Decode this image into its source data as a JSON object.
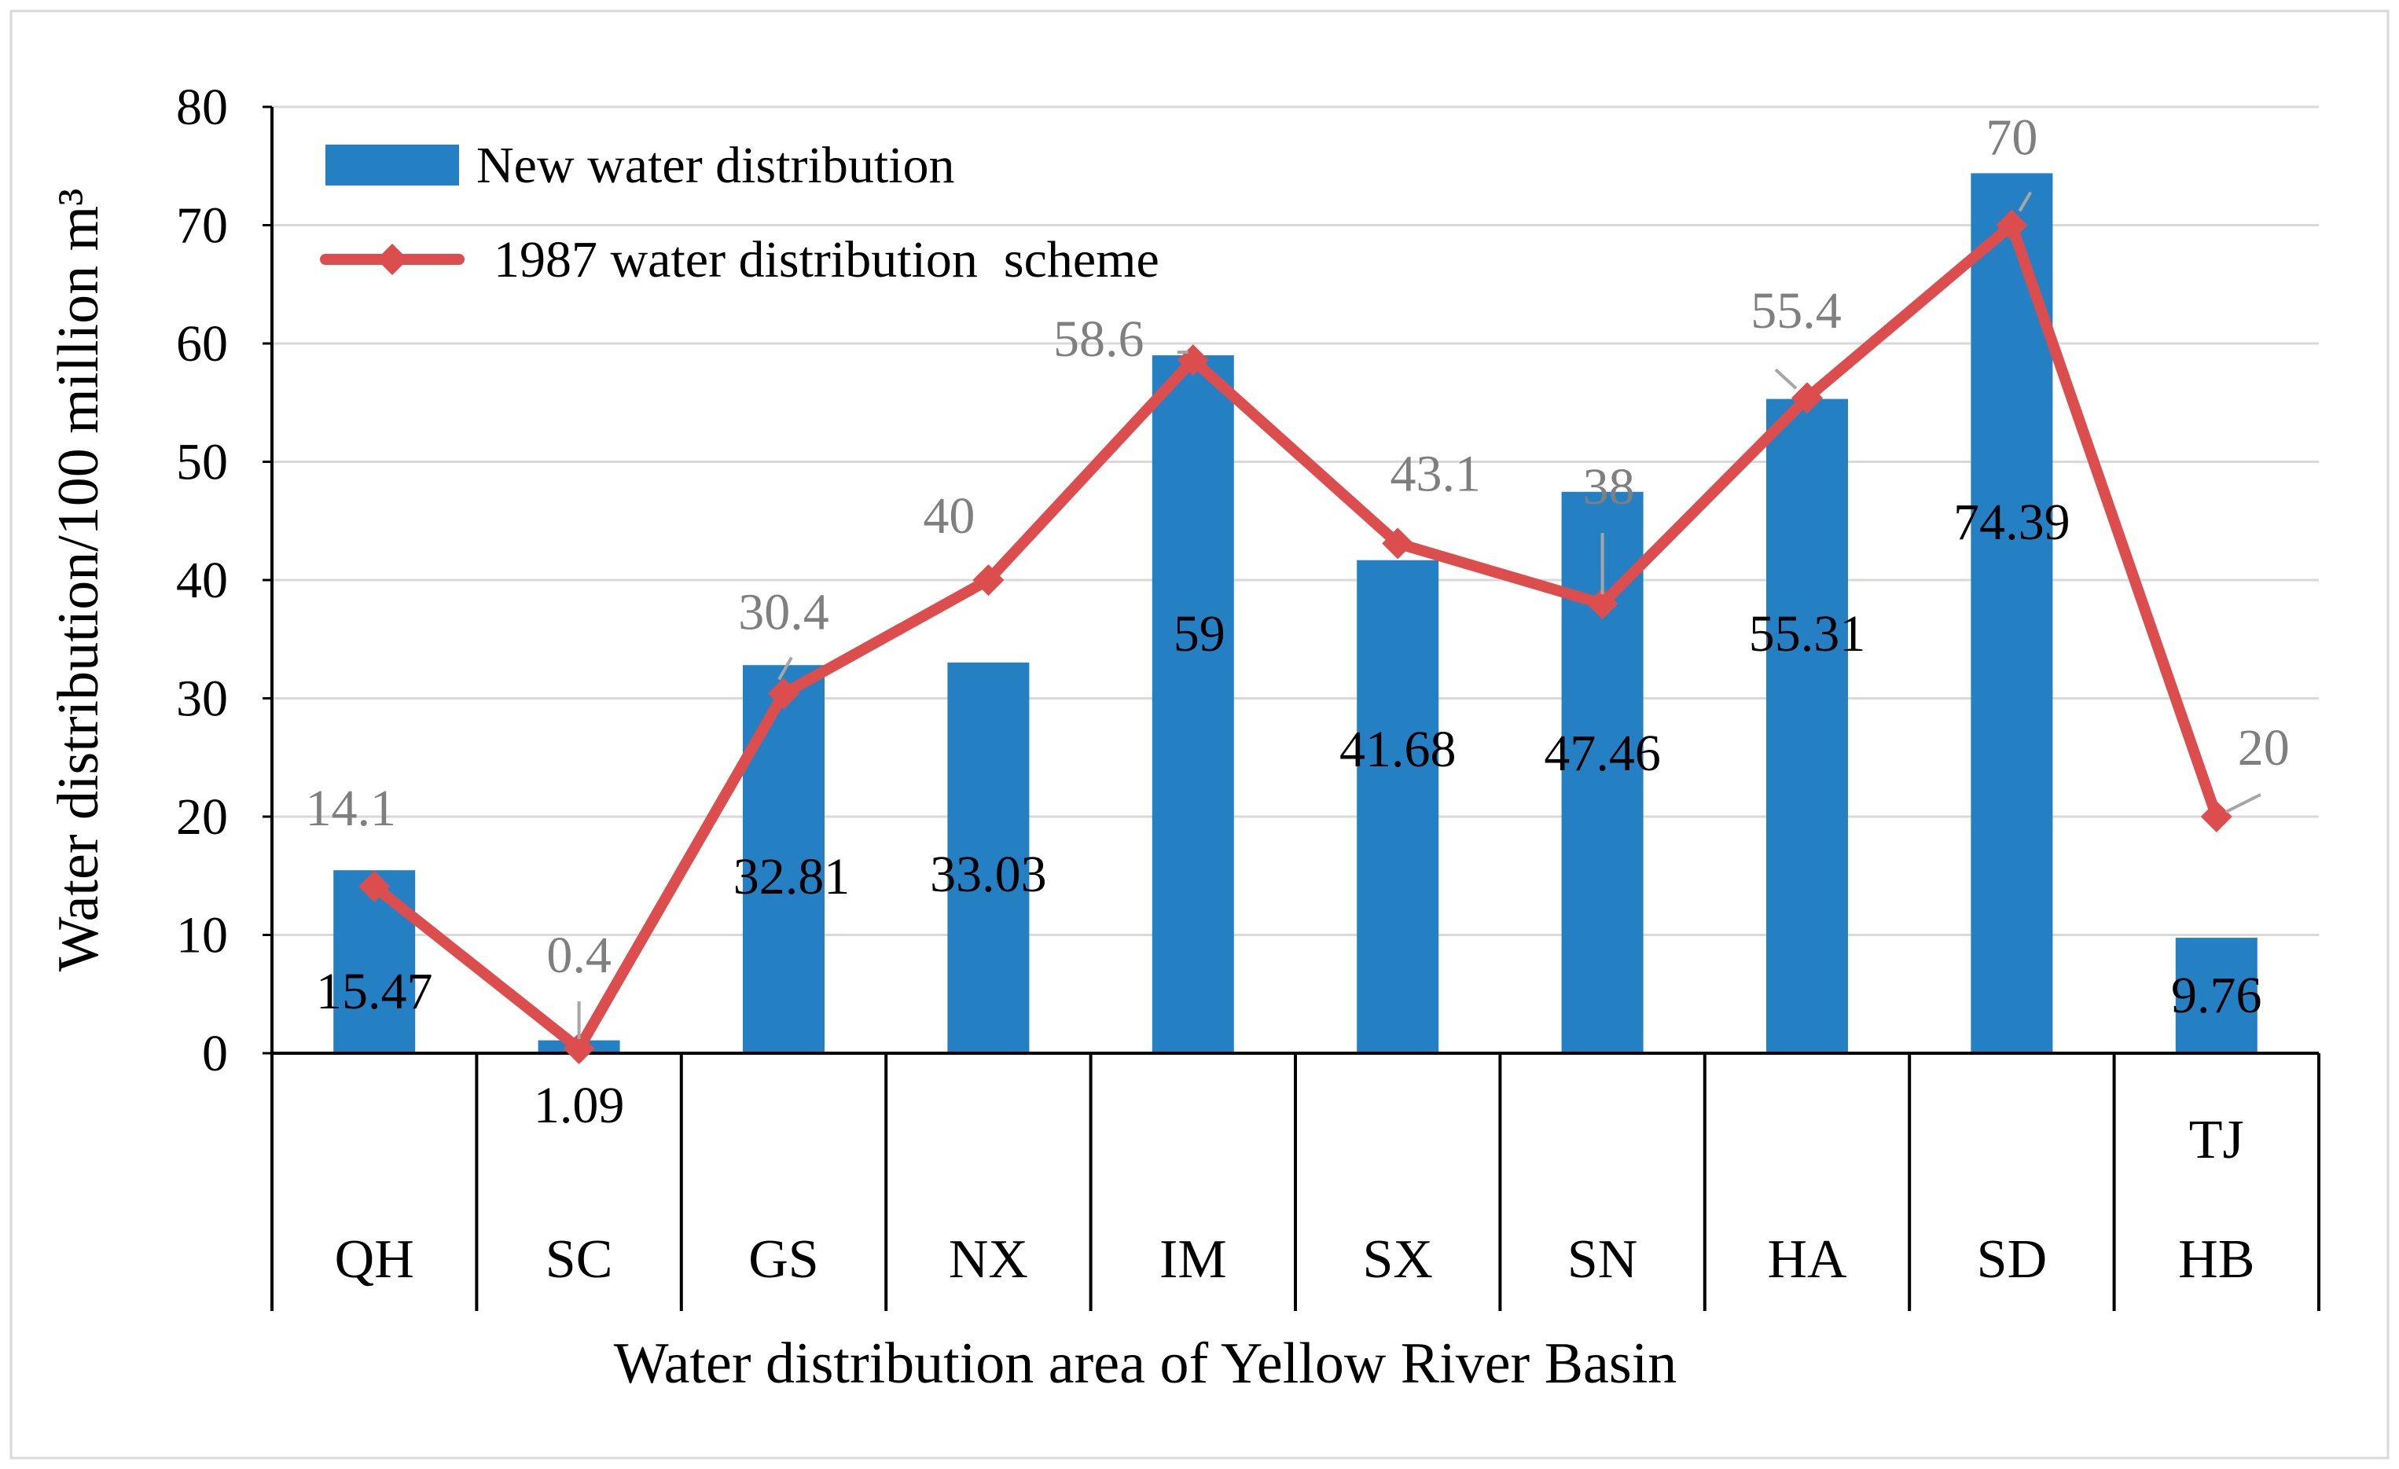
{
  "chart_data": {
    "type": "bar",
    "title": "",
    "xlabel": "Water distribution area of Yellow River Basin",
    "ylabel": "Water distribution/100 million m³",
    "ylim": [
      0,
      80
    ],
    "yticks": [
      0,
      10,
      20,
      30,
      40,
      50,
      60,
      70,
      80
    ],
    "grid": true,
    "legend_position": "top-left",
    "categories": [
      "QH",
      "SC",
      "GS",
      "NX",
      "IM",
      "SX",
      "SN",
      "HA",
      "SD",
      "HB"
    ],
    "category_extra_labels": [
      "",
      "",
      "",
      "",
      "",
      "",
      "",
      "",
      "",
      "TJ"
    ],
    "series": [
      {
        "name": "New water distribution",
        "kind": "bar",
        "color": "#2580c3",
        "values": [
          15.47,
          1.09,
          32.81,
          33.03,
          59,
          41.68,
          47.46,
          55.31,
          74.39,
          9.76
        ],
        "labels": [
          "15.47",
          "1.09",
          "32.81",
          "33.03",
          "59",
          "41.68",
          "47.46",
          "55.31",
          "74.39",
          "9.76"
        ]
      },
      {
        "name": "1987 water distribution  scheme",
        "kind": "line",
        "marker": "diamond",
        "color": "#dc4e4e",
        "values": [
          14.1,
          0.4,
          30.4,
          40,
          58.6,
          43.1,
          38,
          55.4,
          70,
          20
        ],
        "labels": [
          "14.1",
          "0.4",
          "30.4",
          "40",
          "58.6",
          "43.1",
          "38",
          "55.4",
          "70",
          "20"
        ]
      }
    ]
  }
}
